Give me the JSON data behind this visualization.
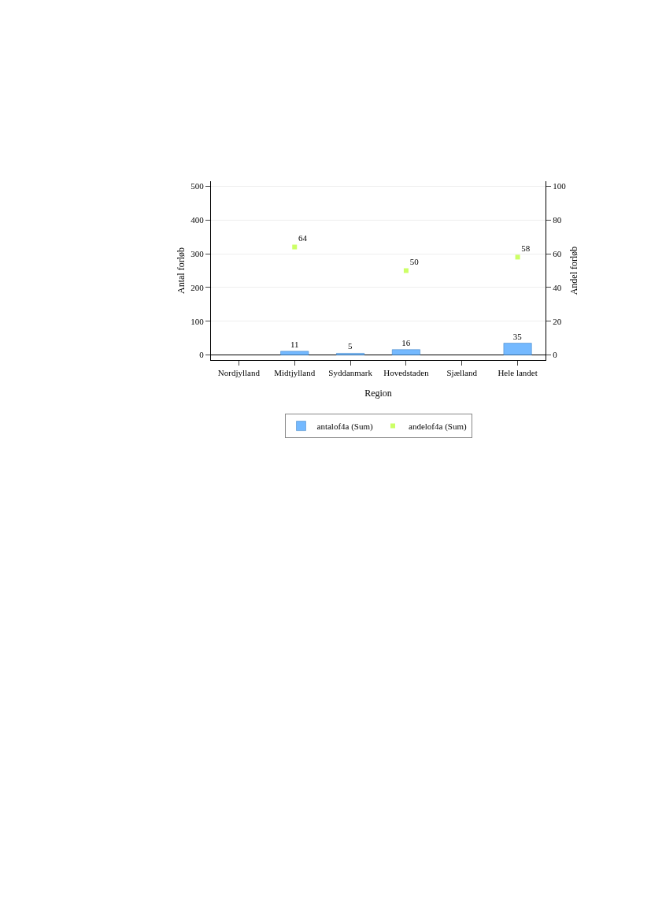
{
  "chart_data": {
    "type": "bar",
    "xlabel": "Region",
    "ylabel": "Antal forløb",
    "y2label": "Andel forløb",
    "categories": [
      "Nordjylland",
      "Midtjylland",
      "Syddanmark",
      "Hovedstaden",
      "Sjælland",
      "Hele landet"
    ],
    "series": [
      {
        "name": "antalof4a (Sum)",
        "color": "#74b9ff",
        "values": [
          null,
          11,
          5,
          16,
          null,
          35
        ]
      },
      {
        "name": "andelof4a (Sum)",
        "type": "scatter",
        "axis": "y2",
        "marker": "square",
        "color": "#ccff66",
        "values": [
          null,
          64,
          null,
          50,
          null,
          58
        ]
      }
    ],
    "ylim": [
      -15,
      515
    ],
    "yticks": [
      0,
      100,
      200,
      300,
      400,
      500
    ],
    "y2lim": [
      -3,
      103
    ],
    "y2ticks": [
      0,
      20,
      40,
      60,
      80,
      100
    ],
    "grid": "y",
    "legend": "bottom",
    "data_labels": true
  }
}
